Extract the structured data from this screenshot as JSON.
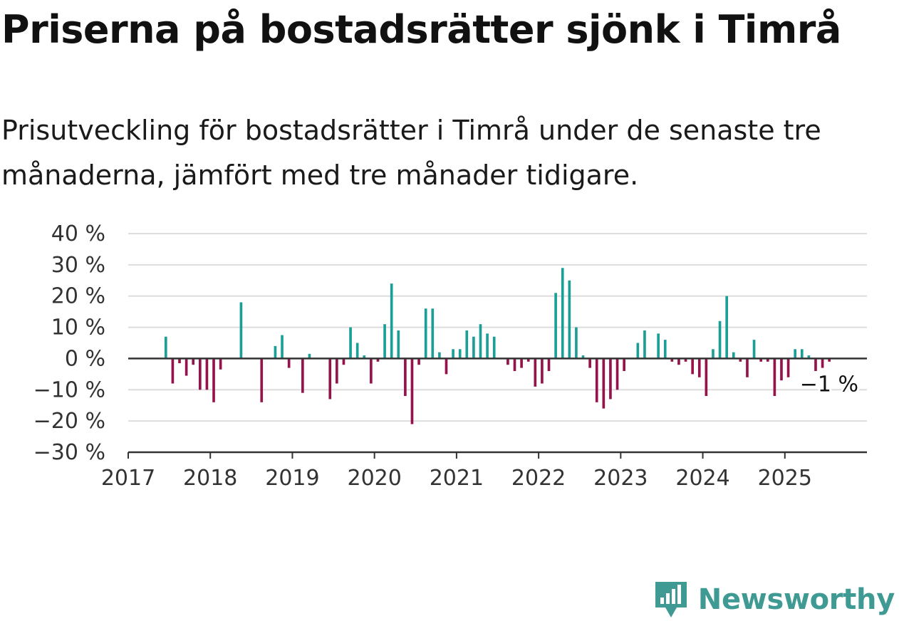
{
  "title": "Priserna på bostadsrätter sjönk i Timrå",
  "subtitle": "Prisutveckling för bostadsrätter i Timrå under de senaste tre månaderna, jämfört med tre månader tidigare.",
  "brand": {
    "name": "Newsworthy",
    "icon": "newsworthy-logo-icon",
    "color": "#3f9a93"
  },
  "chart_data": {
    "type": "bar",
    "x_unit": "month",
    "xlim": [
      "2017-01",
      "2025-12"
    ],
    "ylim": [
      -30,
      40
    ],
    "y_ticks": [
      40,
      30,
      20,
      10,
      0,
      -10,
      -20,
      -30
    ],
    "y_tick_labels": [
      "40 %",
      "30 %",
      "20 %",
      "10 %",
      "0 %",
      "−10 %",
      "−20 %",
      "−30 %"
    ],
    "x_tick_labels": [
      "2017",
      "2018",
      "2019",
      "2020",
      "2021",
      "2022",
      "2023",
      "2024",
      "2025"
    ],
    "colors": {
      "positive": "#1a9e96",
      "negative": "#96124a",
      "grid": "#dddddd",
      "axis": "#333333"
    },
    "grid": true,
    "annotation": {
      "label": "−1 %",
      "month": "2025-07"
    },
    "months": [
      "2017-06",
      "2017-07",
      "2017-08",
      "2017-09",
      "2017-10",
      "2017-11",
      "2017-12",
      "2018-01",
      "2018-02",
      "2018-05",
      "2018-08",
      "2018-10",
      "2018-11",
      "2018-12",
      "2019-02",
      "2019-03",
      "2019-06",
      "2019-07",
      "2019-08",
      "2019-09",
      "2019-10",
      "2019-11",
      "2019-12",
      "2020-01",
      "2020-02",
      "2020-03",
      "2020-04",
      "2020-05",
      "2020-06",
      "2020-07",
      "2020-08",
      "2020-09",
      "2020-10",
      "2020-11",
      "2020-12",
      "2021-01",
      "2021-02",
      "2021-03",
      "2021-04",
      "2021-05",
      "2021-06",
      "2021-08",
      "2021-09",
      "2021-10",
      "2021-11",
      "2021-12",
      "2022-01",
      "2022-02",
      "2022-03",
      "2022-04",
      "2022-05",
      "2022-06",
      "2022-07",
      "2022-08",
      "2022-09",
      "2022-10",
      "2022-11",
      "2022-12",
      "2023-01",
      "2023-03",
      "2023-04",
      "2023-06",
      "2023-07",
      "2023-08",
      "2023-09",
      "2023-10",
      "2023-11",
      "2023-12",
      "2024-01",
      "2024-02",
      "2024-03",
      "2024-04",
      "2024-05",
      "2024-06",
      "2024-07",
      "2024-08",
      "2024-09",
      "2024-10",
      "2024-11",
      "2024-12",
      "2025-01",
      "2025-02",
      "2025-03",
      "2025-04",
      "2025-05",
      "2025-06",
      "2025-07"
    ],
    "values": [
      7,
      -8,
      -1.5,
      -5.5,
      -2,
      -10,
      -10,
      -14,
      -3.5,
      18,
      -14,
      4,
      7.5,
      -3,
      -11,
      1.5,
      -13,
      -8,
      -2,
      10,
      5,
      1,
      -8,
      -1,
      11,
      24,
      9,
      -12,
      -21,
      -2,
      16,
      16,
      2,
      -5,
      3,
      3,
      9,
      7,
      11,
      8,
      7,
      -2,
      -4,
      -3,
      -1,
      -9,
      -8,
      -4,
      21,
      29,
      25,
      10,
      1,
      -3,
      -14,
      -16,
      -13,
      -10,
      -4,
      5,
      9,
      8,
      6,
      -1,
      -2,
      -1,
      -5,
      -6,
      -12,
      3,
      12,
      20,
      2,
      -1,
      -6,
      6,
      -1,
      -1,
      -12,
      -7,
      -6,
      3,
      3,
      1,
      -4,
      -3,
      -1
    ]
  }
}
